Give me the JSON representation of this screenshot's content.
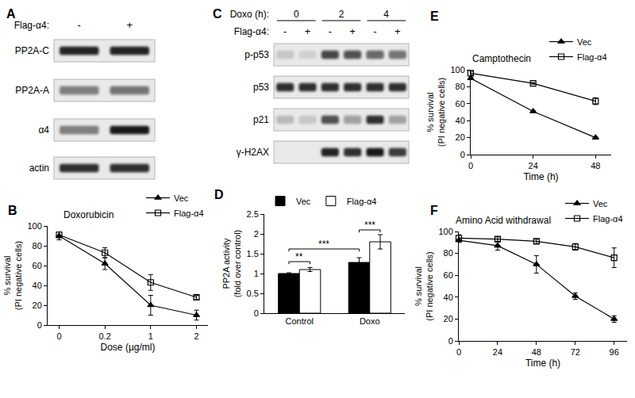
{
  "chart_data": [
    {
      "panel": "B",
      "type": "line",
      "title": "Doxorubicin",
      "x_label": "Dose (µg/ml)",
      "y_label": [
        "% survival",
        "(PI negative cells)"
      ],
      "categories": [
        "0",
        "0.2",
        "1",
        "2"
      ],
      "series": [
        {
          "name": "Vec",
          "color": "#000000",
          "marker": "triangle-up",
          "values": [
            90,
            62,
            20,
            10
          ],
          "errors": [
            4,
            6,
            10,
            5
          ]
        },
        {
          "name": "Flag-α4",
          "color": "#000000",
          "marker": "square-open",
          "values": [
            91,
            73,
            43,
            28
          ],
          "errors": [
            3,
            5,
            8,
            2
          ]
        }
      ],
      "ylim": [
        0,
        100
      ],
      "yticks": [
        0,
        20,
        40,
        60,
        80,
        100
      ],
      "legend": "upper right",
      "grid": false
    },
    {
      "panel": "D",
      "type": "bar",
      "y_label": [
        "PP2A activity",
        "(fold over control)"
      ],
      "categories": [
        "Control",
        "Doxo"
      ],
      "series": [
        {
          "name": "Vec",
          "color": "#000000",
          "values": [
            1.0,
            1.28
          ],
          "errors": [
            0.02,
            0.12
          ]
        },
        {
          "name": "Flag-α4",
          "color": "#ffffff",
          "values": [
            1.1,
            1.8
          ],
          "errors": [
            0.05,
            0.18
          ]
        }
      ],
      "ylim": [
        0,
        2.5
      ],
      "yticks": [
        0,
        0.5,
        1,
        1.5,
        2,
        2.5
      ],
      "legend": "upper left",
      "grid": false,
      "significance": [
        {
          "label": "**",
          "from": {
            "category": "Control",
            "series": "Vec"
          },
          "to": {
            "category": "Control",
            "series": "Flag-α4"
          },
          "y": 1.3
        },
        {
          "label": "***",
          "from": {
            "category": "Control",
            "series": "Vec"
          },
          "to": {
            "category": "Doxo",
            "series": "Vec"
          },
          "y": 1.62
        },
        {
          "label": "***",
          "from": {
            "category": "Doxo",
            "series": "Vec"
          },
          "to": {
            "category": "Doxo",
            "series": "Flag-α4"
          },
          "y": 2.1
        }
      ]
    },
    {
      "panel": "E",
      "type": "line",
      "title": "Camptothecin",
      "x_label": "Time (h)",
      "y_label": [
        "% survival",
        "(PI negative cells)"
      ],
      "x": [
        0,
        24,
        48
      ],
      "series": [
        {
          "name": "Vec",
          "color": "#000000",
          "marker": "triangle-up",
          "values": [
            90,
            51,
            20
          ],
          "errors": [
            1,
            1,
            1
          ]
        },
        {
          "name": "Flag-α4",
          "color": "#000000",
          "marker": "square-open",
          "values": [
            96,
            84,
            63
          ],
          "errors": [
            2,
            1,
            4
          ]
        }
      ],
      "xlim": [
        0,
        54
      ],
      "xticks": [
        0,
        24,
        48
      ],
      "ylim": [
        0,
        100
      ],
      "yticks": [
        0,
        20,
        40,
        60,
        80,
        100
      ],
      "legend": "upper right",
      "grid": false
    },
    {
      "panel": "F",
      "type": "line",
      "title": "Amino Acid withdrawal",
      "x_label": "Time (h)",
      "y_label": [
        "% survival",
        "(PI negative cells)"
      ],
      "x": [
        0,
        24,
        48,
        72,
        96
      ],
      "series": [
        {
          "name": "Vec",
          "color": "#000000",
          "marker": "triangle-up",
          "values": [
            92,
            87,
            70,
            41,
            20
          ],
          "errors": [
            2,
            4,
            8,
            3,
            3
          ]
        },
        {
          "name": "Flag-α4",
          "color": "#000000",
          "marker": "square-open",
          "values": [
            94,
            93,
            91,
            86,
            76
          ],
          "errors": [
            3,
            2,
            2,
            3,
            9
          ]
        }
      ],
      "xlim": [
        0,
        104
      ],
      "xticks": [
        0,
        24,
        48,
        72,
        96
      ],
      "ylim": [
        0,
        100
      ],
      "yticks": [
        0,
        20,
        40,
        60,
        80,
        100
      ],
      "legend": "upper right",
      "grid": false
    }
  ],
  "blots": [
    {
      "panel": "A",
      "header": [
        {
          "label": "Flag-α4:",
          "lanes": [
            "-",
            "+"
          ]
        }
      ],
      "rows": [
        {
          "label": "PP2A-C",
          "intensity": [
            0.9,
            0.9
          ]
        },
        {
          "label": "PP2A-A",
          "intensity": [
            0.5,
            0.55
          ]
        },
        {
          "label": "α4",
          "intensity": [
            0.5,
            0.95
          ]
        },
        {
          "label": "actin",
          "intensity": [
            0.85,
            0.85
          ]
        }
      ]
    },
    {
      "panel": "C",
      "header": [
        {
          "label": "Doxo (h):",
          "groups": [
            "0",
            "2",
            "4"
          ]
        },
        {
          "label": "Flag-α4:",
          "lanes": [
            "-",
            "+",
            "-",
            "+",
            "-",
            "+"
          ]
        }
      ],
      "rows": [
        {
          "label": "p-p53",
          "intensity": [
            0.15,
            0.1,
            0.75,
            0.7,
            0.6,
            0.55
          ]
        },
        {
          "label": "p53",
          "intensity": [
            0.85,
            0.85,
            0.85,
            0.85,
            0.85,
            0.85
          ]
        },
        {
          "label": "p21",
          "intensity": [
            0.2,
            0.15,
            0.7,
            0.35,
            0.85,
            0.3
          ]
        },
        {
          "label": "γ-H2AX",
          "intensity": [
            0.0,
            0.0,
            0.9,
            0.85,
            0.95,
            0.8
          ]
        }
      ]
    }
  ]
}
